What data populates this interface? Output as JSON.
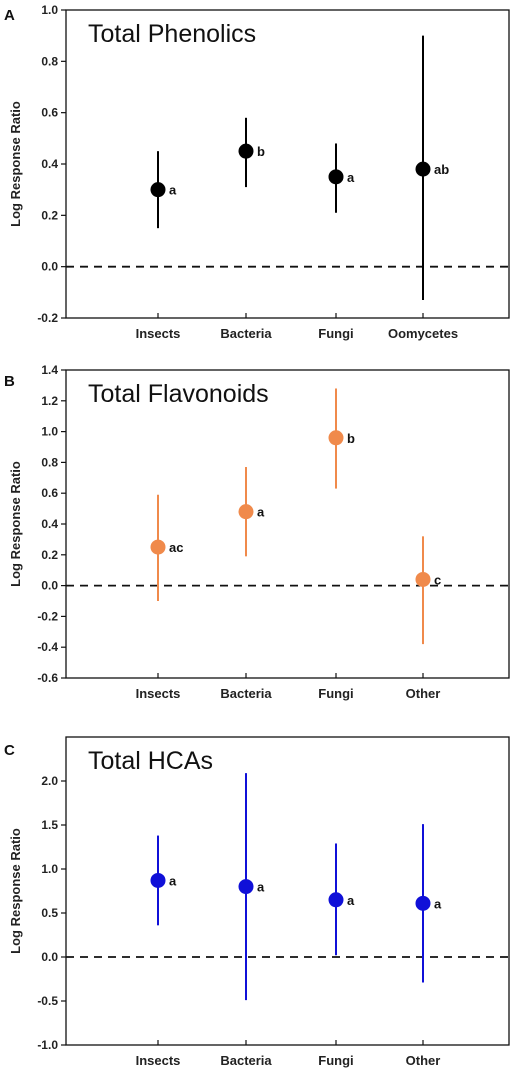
{
  "chart_data": [
    {
      "type": "scatter",
      "panel": "A",
      "title": "Total Phenolics",
      "ylabel": "Log Response Ratio",
      "xlabel": "",
      "ylim": [
        -0.2,
        1.0
      ],
      "yticks": [
        -0.2,
        0.0,
        0.2,
        0.4,
        0.6,
        0.8,
        1.0
      ],
      "ytick_labels": [
        "-0.2",
        "0.0",
        "0.2",
        "0.4",
        "0.6",
        "0.8",
        "1.0"
      ],
      "reference_line": 0.0,
      "color": "#000000",
      "categories": [
        "Insects",
        "Bacteria",
        "Fungi",
        "Oomycetes"
      ],
      "values": [
        0.3,
        0.45,
        0.35,
        0.38
      ],
      "ci_low": [
        0.15,
        0.31,
        0.21,
        -0.13
      ],
      "ci_high": [
        0.45,
        0.58,
        0.48,
        0.9
      ],
      "labels": [
        "a",
        "b",
        "a",
        "ab"
      ]
    },
    {
      "type": "scatter",
      "panel": "B",
      "title": "Total Flavonoids",
      "ylabel": "Log Response Ratio",
      "xlabel": "",
      "ylim": [
        -0.6,
        1.4
      ],
      "yticks": [
        -0.6,
        -0.4,
        -0.2,
        0.0,
        0.2,
        0.4,
        0.6,
        0.8,
        1.0,
        1.2,
        1.4
      ],
      "ytick_labels": [
        "-0.6",
        "-0.4",
        "-0.2",
        "0.0",
        "0.2",
        "0.4",
        "0.6",
        "0.8",
        "1.0",
        "1.2",
        "1.4"
      ],
      "reference_line": 0.0,
      "color": "#f08a4b",
      "categories": [
        "Insects",
        "Bacteria",
        "Fungi",
        "Other"
      ],
      "values": [
        0.25,
        0.48,
        0.96,
        0.04
      ],
      "ci_low": [
        -0.1,
        0.19,
        0.63,
        -0.38
      ],
      "ci_high": [
        0.59,
        0.77,
        1.28,
        0.32
      ],
      "labels": [
        "ac",
        "a",
        "b",
        "c"
      ]
    },
    {
      "type": "scatter",
      "panel": "C",
      "title": "Total HCAs",
      "ylabel": "Log Response Ratio",
      "xlabel": "",
      "ylim": [
        -1.0,
        2.5
      ],
      "yticks": [
        -1.0,
        -0.5,
        0.0,
        0.5,
        1.0,
        1.5,
        2.0
      ],
      "ytick_labels": [
        "-1.0",
        "-0.5",
        "0.0",
        "0.5",
        "1.0",
        "1.5",
        "2.0"
      ],
      "reference_line": 0.0,
      "color": "#1010d8",
      "categories": [
        "Insects",
        "Bacteria",
        "Fungi",
        "Other"
      ],
      "values": [
        0.87,
        0.8,
        0.65,
        0.61
      ],
      "ci_low": [
        0.36,
        -0.49,
        0.02,
        -0.29
      ],
      "ci_high": [
        1.38,
        2.09,
        1.29,
        1.51
      ],
      "labels": [
        "a",
        "a",
        "a",
        "a"
      ]
    }
  ]
}
